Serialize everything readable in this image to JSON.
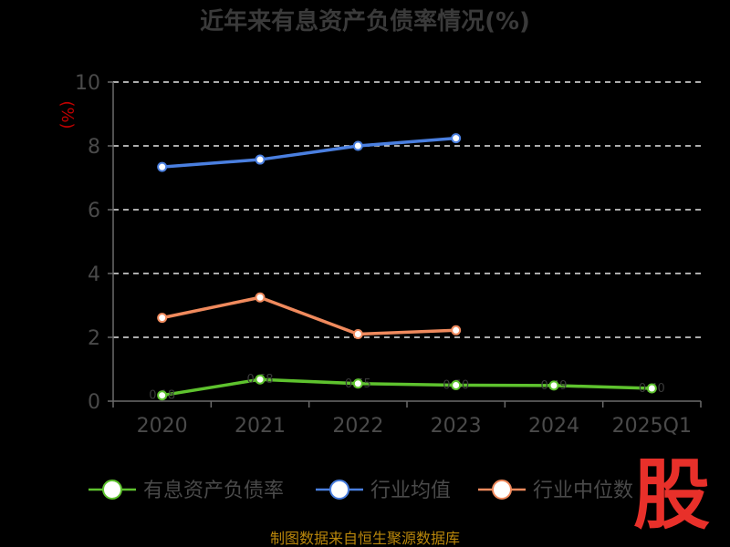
{
  "chart_data": {
    "type": "line",
    "title": "近年来有息资产负债率情况(%)",
    "ylabel": "(%)",
    "categories": [
      "2020",
      "2021",
      "2022",
      "2023",
      "2024",
      "2025Q1"
    ],
    "ylim": [
      0,
      10
    ],
    "yticks": [
      0,
      2,
      4,
      6,
      8,
      10
    ],
    "grid": true,
    "legend_position": "bottom",
    "series": [
      {
        "name": "有息资产负债率",
        "color": "#5ec22e",
        "values": [
          0.18,
          0.68,
          0.55,
          0.5,
          0.49,
          0.4
        ],
        "labels": [
          "0.18",
          "0.68",
          "0.55",
          "0.50",
          "0.49",
          "0.40"
        ]
      },
      {
        "name": "行业均值",
        "color": "#4a7fe0",
        "values": [
          7.34,
          7.57,
          8.0,
          8.24,
          null,
          null
        ]
      },
      {
        "name": "行业中位数",
        "color": "#f08a5d",
        "values": [
          2.61,
          3.25,
          2.1,
          2.22,
          null,
          null
        ]
      }
    ],
    "source": "制图数据来自恒生聚源数据库",
    "watermark": "股"
  }
}
